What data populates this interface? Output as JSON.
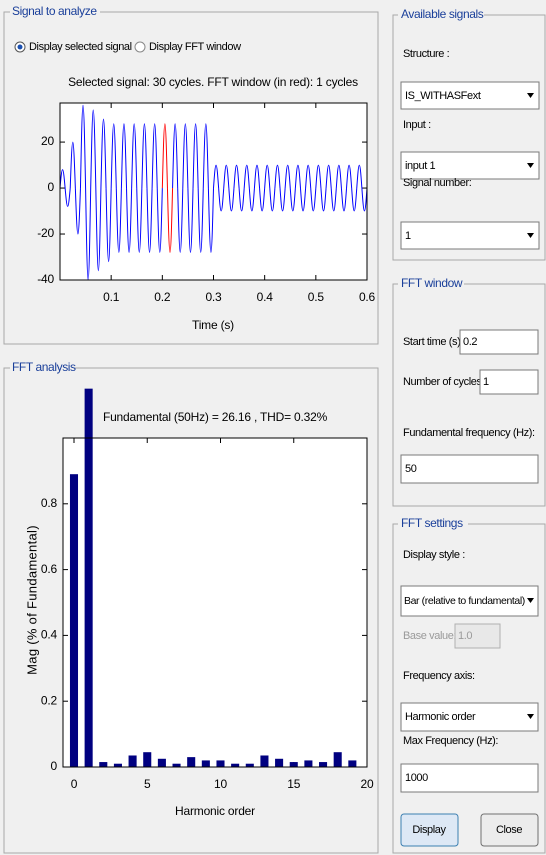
{
  "signal_panel": {
    "title": "Signal to analyze",
    "radio_selected": "Display selected signal",
    "radio_fft": "Display FFT window",
    "plot": {
      "title": "Selected signal: 30 cycles. FFT window (in red): 1 cycles",
      "xlabel": "Time (s)",
      "x": [
        0,
        0.005,
        0.01,
        0.015,
        0.02,
        0.025,
        0.03,
        0.035,
        0.04,
        0.045,
        0.05,
        0.055,
        0.06,
        0.065,
        0.07,
        0.075,
        0.08,
        0.085,
        0.09,
        0.095,
        0.1,
        0.105,
        0.11,
        0.115,
        0.12,
        0.125,
        0.13,
        0.135,
        0.14,
        0.145,
        0.15,
        0.155,
        0.16,
        0.165,
        0.17,
        0.175,
        0.18,
        0.185,
        0.19,
        0.195,
        0.2,
        0.205,
        0.21,
        0.215,
        0.22,
        0.225,
        0.23,
        0.235,
        0.24,
        0.245,
        0.25,
        0.255,
        0.26,
        0.265,
        0.27,
        0.275,
        0.28,
        0.285,
        0.29,
        0.295,
        0.3,
        0.305,
        0.31,
        0.315,
        0.32,
        0.325,
        0.33,
        0.335,
        0.34,
        0.345,
        0.35,
        0.355,
        0.36,
        0.365,
        0.37,
        0.375,
        0.38,
        0.385,
        0.39,
        0.395,
        0.4,
        0.405,
        0.41,
        0.415,
        0.42,
        0.425,
        0.43,
        0.435,
        0.44,
        0.445,
        0.45,
        0.455,
        0.46,
        0.465,
        0.47,
        0.475,
        0.48,
        0.485,
        0.49,
        0.495,
        0.5,
        0.505,
        0.51,
        0.515,
        0.52,
        0.525,
        0.53,
        0.535,
        0.54,
        0.545,
        0.55,
        0.555,
        0.56,
        0.565,
        0.57,
        0.575,
        0.58,
        0.585,
        0.59,
        0.595,
        0.6
      ],
      "values": [
        0,
        8,
        0,
        -8,
        0,
        20,
        0,
        -20,
        0,
        36,
        0,
        -40,
        0,
        34,
        0,
        -36,
        0,
        30,
        0,
        -32,
        0,
        28,
        0,
        -28,
        0,
        28,
        0,
        -28,
        0,
        28,
        0,
        -28,
        0,
        28,
        0,
        -28,
        0,
        28,
        0,
        -28,
        0,
        28,
        0,
        -28,
        0,
        28,
        0,
        -28,
        0,
        28,
        0,
        -28,
        0,
        28,
        0,
        -28,
        0,
        28,
        0,
        -28,
        0,
        10,
        0,
        -10,
        0,
        10,
        0,
        -10,
        0,
        10,
        0,
        -10,
        0,
        10,
        0,
        -10,
        0,
        10,
        0,
        -10,
        0,
        10,
        0,
        -10,
        0,
        10,
        0,
        -10,
        0,
        10,
        0,
        -10,
        0,
        10,
        0,
        -10,
        0,
        10,
        0,
        -10,
        0,
        10,
        0,
        -10,
        0,
        10,
        0,
        -10,
        0,
        10,
        0,
        -10,
        0,
        10,
        0,
        -10,
        0,
        10,
        0,
        -10,
        0
      ],
      "color": "#0000ff",
      "window_color": "#ff0000",
      "xlim": [
        0,
        0.6
      ],
      "ylim": [
        -40,
        37
      ],
      "xticks": [
        0.1,
        0.2,
        0.3,
        0.4,
        0.5,
        0.6
      ],
      "yticks": [
        -40,
        -20,
        0,
        20
      ]
    }
  },
  "fft_panel": {
    "title": "FFT analysis",
    "plot": {
      "title": "Fundamental (50Hz) = 26.16 , THD= 0.32%",
      "xlabel": "Harmonic order",
      "ylabel": "Mag (% of Fundamental)",
      "x": [
        0,
        1,
        2,
        3,
        4,
        5,
        6,
        7,
        8,
        9,
        10,
        11,
        12,
        13,
        14,
        15,
        16,
        17,
        18,
        19
      ],
      "values": [
        0.89,
        1.15,
        0.015,
        0.01,
        0.035,
        0.045,
        0.025,
        0.01,
        0.03,
        0.02,
        0.02,
        0.01,
        0.01,
        0.035,
        0.025,
        0.015,
        0.02,
        0.015,
        0.045,
        0.02
      ],
      "color": "#000080",
      "xlim": [
        -0.75,
        20
      ],
      "ylim": [
        0,
        1
      ],
      "xticks": [
        0,
        5,
        10,
        15,
        20
      ],
      "yticks": [
        0,
        0.2,
        0.4,
        0.6,
        0.8
      ]
    }
  },
  "available_signals": {
    "title": "Available signals",
    "structure_label": "Structure :",
    "structure": "IS_WITHASFext",
    "input_label": "Input :",
    "input": "input 1",
    "signal_label": "Signal number:",
    "signal": "1"
  },
  "fft_window": {
    "title": "FFT window",
    "start_label": "Start time (s):",
    "start": "0.2",
    "cycles_label": "Number of cycles:",
    "cycles": "1",
    "freq_label": "Fundamental frequency (Hz):",
    "freq": "50"
  },
  "fft_settings": {
    "title": "FFT settings",
    "style_label": "Display style :",
    "style": "Bar (relative to fundamental)",
    "base_label": "Base value:",
    "base": "1.0",
    "axis_label": "Frequency axis:",
    "axis": "Harmonic order",
    "maxfreq_label": "Max Frequency (Hz):",
    "maxfreq": "1000",
    "display": "Display",
    "close": "Close"
  }
}
